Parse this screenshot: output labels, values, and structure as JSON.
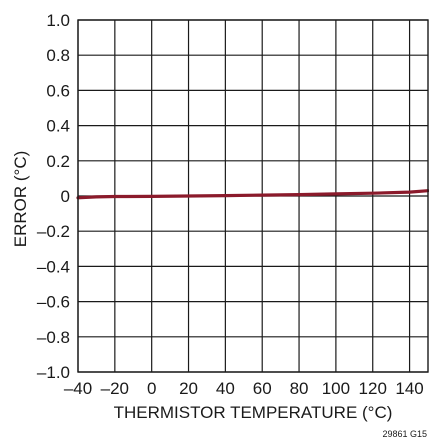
{
  "chart_data": {
    "type": "line",
    "xlabel": "THERMISTOR TEMPERATURE (°C)",
    "ylabel": "ERROR (°C)",
    "figure_id": "29861 G15",
    "xlim": [
      -40,
      150
    ],
    "ylim": [
      -1.0,
      1.0
    ],
    "x_ticks": [
      -40,
      -20,
      0,
      20,
      40,
      60,
      80,
      100,
      120,
      140
    ],
    "x_tick_labels": [
      "–40",
      "–20",
      "0",
      "20",
      "40",
      "60",
      "80",
      "100",
      "120",
      "140"
    ],
    "y_ticks": [
      1.0,
      0.8,
      0.6,
      0.4,
      0.2,
      0,
      -0.2,
      -0.4,
      -0.6,
      -0.8,
      -1.0
    ],
    "y_tick_labels": [
      "1.0",
      "0.8",
      "0.6",
      "0.4",
      "0.2",
      "0",
      "–0.2",
      "–0.4",
      "–0.6",
      "–0.8",
      "–1.0"
    ],
    "grid": true,
    "series": [
      {
        "color": "#8b1a2b",
        "x": [
          -40,
          -30,
          -20,
          0,
          20,
          40,
          60,
          80,
          100,
          120,
          140,
          150
        ],
        "y": [
          -0.01,
          -0.005,
          -0.003,
          -0.002,
          0.0,
          0.002,
          0.005,
          0.008,
          0.012,
          0.016,
          0.022,
          0.03
        ]
      }
    ]
  }
}
